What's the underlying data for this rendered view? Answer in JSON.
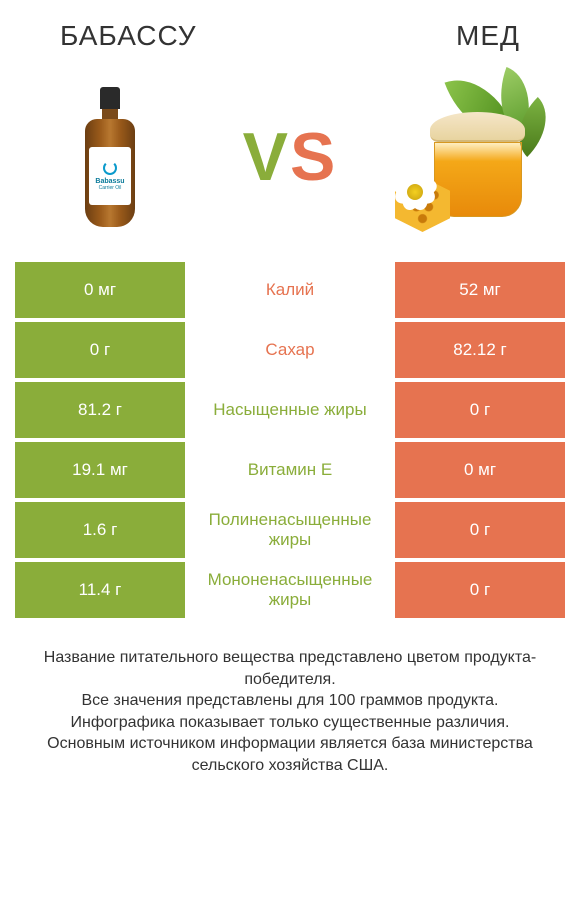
{
  "colors": {
    "left": "#8aad3a",
    "right": "#e67350",
    "background": "#ffffff",
    "text": "#333333"
  },
  "header": {
    "left_title": "БАБАССУ",
    "right_title": "МЕД",
    "vs_label": "VS"
  },
  "rows": [
    {
      "left": "0 мг",
      "label": "Калий",
      "right": "52 мг",
      "winner": "right"
    },
    {
      "left": "0 г",
      "label": "Сахар",
      "right": "82.12 г",
      "winner": "right"
    },
    {
      "left": "81.2 г",
      "label": "Насыщенные жиры",
      "right": "0 г",
      "winner": "left"
    },
    {
      "left": "19.1 мг",
      "label": "Витамин E",
      "right": "0 мг",
      "winner": "left"
    },
    {
      "left": "1.6 г",
      "label": "Полиненасыщенные жиры",
      "right": "0 г",
      "winner": "left"
    },
    {
      "left": "11.4 г",
      "label": "Мононенасыщенные жиры",
      "right": "0 г",
      "winner": "left"
    }
  ],
  "footer": {
    "line1": "Название питательного вещества представлено цветом продукта-победителя.",
    "line2": "Все значения представлены для 100 граммов продукта.",
    "line3": "Инфографика показывает только существенные различия.",
    "line4": "Основным источником информации является база министерства сельского хозяйства США."
  },
  "typography": {
    "title_fontsize": 28,
    "cell_fontsize": 17,
    "footer_fontsize": 16,
    "vs_fontsize": 68
  }
}
